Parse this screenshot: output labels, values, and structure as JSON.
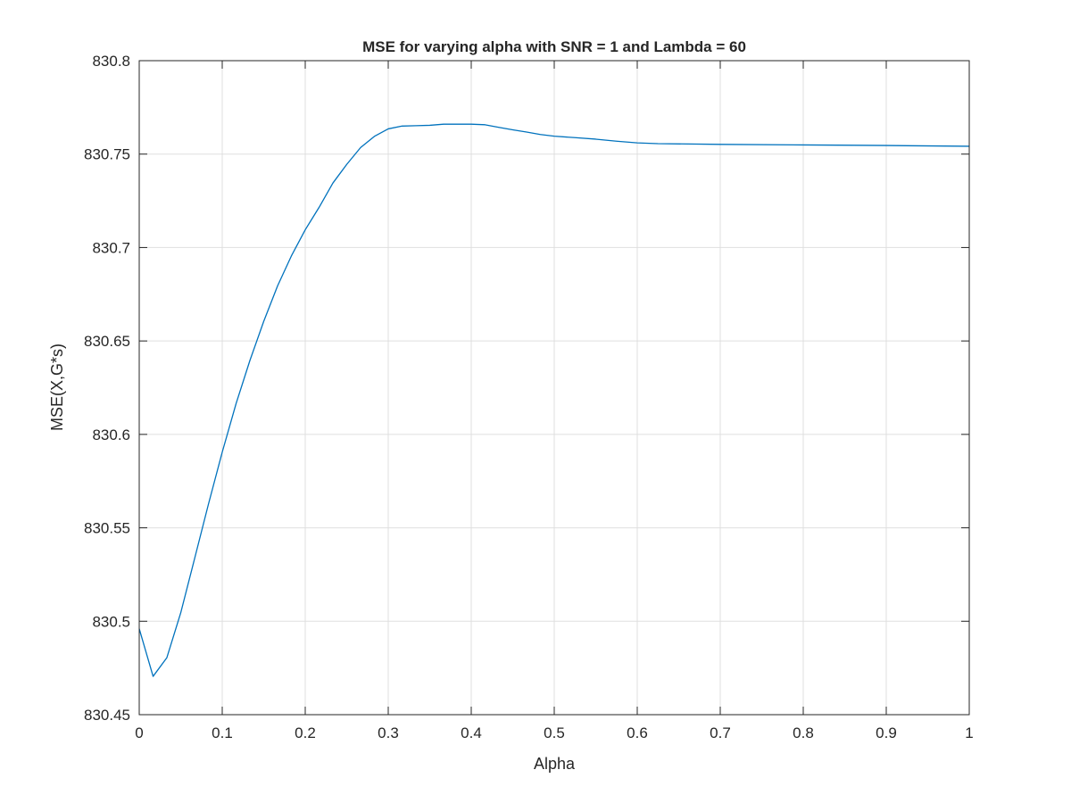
{
  "chart_data": {
    "type": "line",
    "title": "MSE for varying alpha with SNR = 1 and Lambda = 60",
    "xlabel": "Alpha",
    "ylabel": "MSE(X,G*s)",
    "xlim": [
      0,
      1
    ],
    "ylim": [
      830.45,
      830.8
    ],
    "grid": true,
    "x_ticks": [
      0,
      0.1,
      0.2,
      0.3,
      0.4,
      0.5,
      0.6,
      0.7,
      0.8,
      0.9,
      1
    ],
    "x_tick_labels": [
      "0",
      "0.1",
      "0.2",
      "0.3",
      "0.4",
      "0.5",
      "0.6",
      "0.7",
      "0.8",
      "0.9",
      "1"
    ],
    "y_ticks": [
      830.45,
      830.5,
      830.55,
      830.6,
      830.65,
      830.7,
      830.75,
      830.8
    ],
    "y_tick_labels": [
      "830.45",
      "830.5",
      "830.55",
      "830.6",
      "830.65",
      "830.7",
      "830.75",
      "830.8"
    ],
    "line_color": "#0072BD",
    "series": [
      {
        "x": [
          0,
          0.0167,
          0.0333,
          0.05,
          0.0667,
          0.0833,
          0.1,
          0.1167,
          0.1333,
          0.15,
          0.1667,
          0.1833,
          0.2,
          0.2167,
          0.2333,
          0.25,
          0.2667,
          0.2833,
          0.3,
          0.3167,
          0.3333,
          0.35,
          0.3667,
          0.3833,
          0.4,
          0.4167,
          0.4333,
          0.45,
          0.4667,
          0.4833,
          0.5,
          0.525,
          0.55,
          0.575,
          0.6,
          0.625,
          0.7,
          0.8,
          0.9,
          1
        ],
        "y": [
          830.496,
          830.4705,
          830.4805,
          830.5045,
          830.5335,
          830.5625,
          830.5905,
          830.6165,
          830.6395,
          830.6605,
          830.6795,
          830.6955,
          830.7095,
          830.7215,
          830.7345,
          830.7445,
          830.7535,
          830.7595,
          830.7635,
          830.765,
          830.7652,
          830.7654,
          830.766,
          830.766,
          830.766,
          830.7657,
          830.7643,
          830.763,
          830.7618,
          830.7605,
          830.7596,
          830.7588,
          830.758,
          830.7569,
          830.756,
          830.7556,
          830.7552,
          830.7549,
          830.7546,
          830.7542
        ]
      }
    ]
  }
}
